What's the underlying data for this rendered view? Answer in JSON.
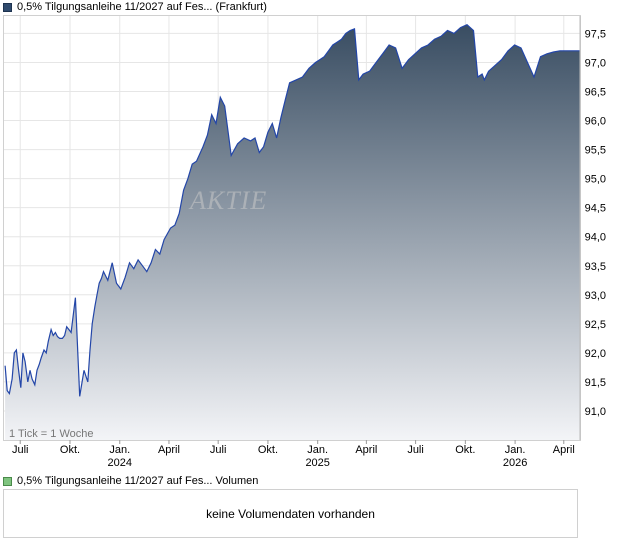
{
  "legend": {
    "price_label": "0,5% Tilgungsanleihe 11/2027 auf Fes... (Frankfurt)",
    "price_color": "#2f4a6d",
    "volume_label": "0,5% Tilgungsanleihe 11/2027 auf Fes... Volumen",
    "volume_color": "#7fc47f"
  },
  "tick_note": "1 Tick = 1 Woche",
  "watermark": "AKTIE",
  "volume_message": "keine Volumendaten vorhanden",
  "chart_data": {
    "type": "area",
    "title": "",
    "xlabel": "",
    "ylabel": "",
    "ylim": [
      90.5,
      97.8
    ],
    "yticks": [
      "91,0",
      "91,5",
      "92,0",
      "92,5",
      "93,0",
      "93,5",
      "94,0",
      "94,5",
      "95,0",
      "95,5",
      "96,0",
      "96,5",
      "97,0",
      "97,5"
    ],
    "ytick_values": [
      91.0,
      91.5,
      92.0,
      92.5,
      93.0,
      93.5,
      94.0,
      94.5,
      95.0,
      95.5,
      96.0,
      96.5,
      97.0,
      97.5
    ],
    "xlim": [
      "2023-06-01",
      "2026-05-01"
    ],
    "xticks": [
      {
        "label": "Juli",
        "date": "2023-07-01"
      },
      {
        "label": "Okt.",
        "date": "2023-10-01"
      },
      {
        "label": "Jan.",
        "date": "2024-01-01",
        "year": "2024"
      },
      {
        "label": "April",
        "date": "2024-04-01"
      },
      {
        "label": "Juli",
        "date": "2024-07-01"
      },
      {
        "label": "Okt.",
        "date": "2024-10-01"
      },
      {
        "label": "Jan.",
        "date": "2025-01-01",
        "year": "2025"
      },
      {
        "label": "April",
        "date": "2025-04-01"
      },
      {
        "label": "Juli",
        "date": "2025-07-01"
      },
      {
        "label": "Okt.",
        "date": "2025-10-01"
      },
      {
        "label": "Jan.",
        "date": "2026-01-01",
        "year": "2026"
      },
      {
        "label": "April",
        "date": "2026-04-01"
      }
    ],
    "grid": true,
    "line_color": "#2346a8",
    "fill_top_color": "#3a4e63",
    "fill_bottom_color": "#f3f4f7",
    "series": [
      {
        "x": [
          "2023-06-03",
          "2023-06-07",
          "2023-06-11",
          "2023-06-16",
          "2023-06-20",
          "2023-06-24",
          "2023-06-28",
          "2023-07-02",
          "2023-07-06",
          "2023-07-10",
          "2023-07-15",
          "2023-07-19",
          "2023-07-23",
          "2023-07-28",
          "2023-08-01",
          "2023-08-05",
          "2023-08-09",
          "2023-08-14",
          "2023-08-18",
          "2023-08-22",
          "2023-08-27",
          "2023-08-31",
          "2023-09-04",
          "2023-09-08",
          "2023-09-12",
          "2023-09-17",
          "2023-09-21",
          "2023-09-25",
          "2023-10-03",
          "2023-10-11",
          "2023-10-19",
          "2023-10-27",
          "2023-11-03",
          "2023-11-07",
          "2023-11-11",
          "2023-11-16",
          "2023-11-20",
          "2023-11-24",
          "2023-11-28",
          "2023-12-02",
          "2023-12-10",
          "2023-12-18",
          "2023-12-26",
          "2024-01-03",
          "2024-01-11",
          "2024-01-19",
          "2024-01-27",
          "2024-02-04",
          "2024-02-12",
          "2024-02-20",
          "2024-02-28",
          "2024-03-07",
          "2024-03-15",
          "2024-03-23",
          "2024-04-04",
          "2024-04-12",
          "2024-04-20",
          "2024-04-28",
          "2024-05-06",
          "2024-05-14",
          "2024-05-22",
          "2024-06-03",
          "2024-06-11",
          "2024-06-19",
          "2024-06-27",
          "2024-07-05",
          "2024-07-13",
          "2024-07-25",
          "2024-08-06",
          "2024-08-18",
          "2024-08-30",
          "2024-09-07",
          "2024-09-15",
          "2024-09-23",
          "2024-10-01",
          "2024-10-09",
          "2024-10-17",
          "2024-10-25",
          "2024-11-02",
          "2024-11-10",
          "2024-11-22",
          "2024-12-04",
          "2024-12-16",
          "2024-12-28",
          "2025-01-05",
          "2025-01-13",
          "2025-01-21",
          "2025-01-29",
          "2025-02-06",
          "2025-02-14",
          "2025-02-22",
          "2025-03-02",
          "2025-03-10",
          "2025-03-18",
          "2025-03-26",
          "2025-04-07",
          "2025-04-19",
          "2025-05-01",
          "2025-05-13",
          "2025-05-25",
          "2025-06-06",
          "2025-06-18",
          "2025-06-30",
          "2025-07-12",
          "2025-07-24",
          "2025-08-05",
          "2025-08-17",
          "2025-08-29",
          "2025-09-10",
          "2025-09-22",
          "2025-10-04",
          "2025-10-16",
          "2025-10-24",
          "2025-11-01",
          "2025-11-05",
          "2025-11-13",
          "2025-11-25",
          "2025-12-07",
          "2025-12-19",
          "2025-12-31",
          "2026-01-12",
          "2026-01-24",
          "2026-02-05",
          "2026-02-17",
          "2026-03-01",
          "2026-03-13",
          "2026-03-25",
          "2026-04-06",
          "2026-04-18",
          "2026-04-30"
        ],
        "y": [
          91.78,
          91.35,
          91.3,
          91.55,
          92.0,
          92.05,
          91.7,
          91.4,
          92.0,
          91.85,
          91.5,
          91.7,
          91.55,
          91.45,
          91.7,
          91.8,
          91.92,
          92.05,
          92.0,
          92.2,
          92.4,
          92.3,
          92.35,
          92.28,
          92.25,
          92.25,
          92.3,
          92.45,
          92.35,
          92.95,
          91.25,
          91.7,
          91.5,
          92.05,
          92.5,
          92.8,
          93.0,
          93.2,
          93.28,
          93.4,
          93.25,
          93.55,
          93.2,
          93.1,
          93.3,
          93.55,
          93.45,
          93.6,
          93.5,
          93.4,
          93.55,
          93.78,
          93.7,
          93.95,
          94.15,
          94.2,
          94.4,
          94.8,
          95.0,
          95.25,
          95.3,
          95.55,
          95.75,
          96.1,
          95.95,
          96.4,
          96.25,
          95.4,
          95.6,
          95.7,
          95.65,
          95.7,
          95.45,
          95.55,
          95.8,
          95.95,
          95.7,
          96.05,
          96.35,
          96.65,
          96.7,
          96.75,
          96.9,
          97.0,
          97.05,
          97.1,
          97.2,
          97.3,
          97.35,
          97.4,
          97.5,
          97.55,
          97.58,
          96.7,
          96.8,
          96.85,
          97.0,
          97.15,
          97.3,
          97.25,
          96.9,
          97.05,
          97.15,
          97.25,
          97.3,
          97.4,
          97.45,
          97.55,
          97.5,
          97.6,
          97.65,
          97.55,
          96.75,
          96.8,
          96.7,
          96.85,
          96.95,
          97.05,
          97.2,
          97.3,
          97.25,
          97.0,
          96.75,
          97.1,
          97.15,
          97.18,
          97.2,
          97.2,
          97.2,
          97.2
        ]
      }
    ]
  }
}
